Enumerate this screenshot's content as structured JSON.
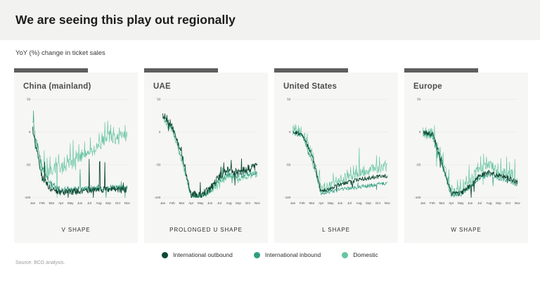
{
  "header": {
    "title": "We are seeing this play out regionally"
  },
  "subtitle": "YoY (%) change in ticket sales",
  "source": "Source: BCG analysis.",
  "colors": {
    "outbound": "#0d4a33",
    "inbound": "#2f9e80",
    "domestic": "#66c5a0",
    "accent_bar": "#5e5e5e",
    "panel_bg": "#f6f6f4",
    "header_band_bg": "#f2f2f0",
    "grid": "#e3e3e1"
  },
  "legend": {
    "items": [
      {
        "label": "International outbound",
        "color_key": "outbound"
      },
      {
        "label": "International inbound",
        "color_key": "inbound"
      },
      {
        "label": "Domestic",
        "color_key": "domestic"
      }
    ]
  },
  "y_ticks": [
    50,
    0,
    -50,
    -100
  ],
  "chart_data": [
    {
      "type": "line",
      "region": "China (mainland)",
      "shape_label": "V SHAPE",
      "ylim": [
        -100,
        50
      ],
      "seed": 11,
      "categories": [
        "Jan",
        "Feb",
        "Mar",
        "Apr",
        "May",
        "Jun",
        "Jul",
        "Aug",
        "Sep",
        "Oct",
        "Nov"
      ],
      "series": [
        {
          "name": "International outbound",
          "color_key": "outbound",
          "values": [
            5,
            -70,
            -88,
            -92,
            -91,
            -90,
            -89,
            -88,
            -88,
            -87,
            -88
          ],
          "noise": 5,
          "spike": 50,
          "comb": false
        },
        {
          "name": "International inbound",
          "color_key": "inbound",
          "values": [
            15,
            -55,
            -80,
            -88,
            -88,
            -87,
            -86,
            -85,
            -86,
            -85,
            -86
          ],
          "noise": 5,
          "spike": 35,
          "comb": false
        },
        {
          "name": "Domestic",
          "color_key": "domestic",
          "values": [
            10,
            -60,
            -58,
            -55,
            -48,
            -38,
            -32,
            -22,
            -5,
            -10,
            -6
          ],
          "noise": 10,
          "spike": 55,
          "comb": true
        }
      ]
    },
    {
      "type": "line",
      "region": "UAE",
      "shape_label": "PROLONGED U SHAPE",
      "ylim": [
        -100,
        50
      ],
      "seed": 23,
      "categories": [
        "Jan",
        "Feb",
        "Mar",
        "Apr",
        "May",
        "Jun",
        "Jul",
        "Aug",
        "Sep",
        "Oct",
        "Nov"
      ],
      "series": [
        {
          "name": "International outbound",
          "color_key": "outbound",
          "values": [
            28,
            10,
            -30,
            -96,
            -96,
            -88,
            -68,
            -58,
            -62,
            -56,
            -53
          ],
          "noise": 6,
          "spike": 28,
          "comb": false
        },
        {
          "name": "International inbound",
          "color_key": "inbound",
          "values": [
            24,
            6,
            -38,
            -98,
            -97,
            -91,
            -73,
            -64,
            -68,
            -64,
            -62
          ],
          "noise": 4,
          "spike": 14,
          "comb": false
        },
        {
          "name": "Domestic",
          "color_key": "domestic",
          "values": [
            21,
            3,
            -44,
            -98,
            -98,
            -93,
            -76,
            -67,
            -72,
            -68,
            -66
          ],
          "noise": 4,
          "spike": 12,
          "comb": false
        }
      ]
    },
    {
      "type": "line",
      "region": "United States",
      "shape_label": "L SHAPE",
      "ylim": [
        -100,
        50
      ],
      "seed": 37,
      "categories": [
        "Jan",
        "Feb",
        "Mar",
        "Apr",
        "May",
        "Jun",
        "Jul",
        "Aug",
        "Sep",
        "Oct",
        "Nov"
      ],
      "series": [
        {
          "name": "International outbound",
          "color_key": "outbound",
          "values": [
            0,
            -3,
            -35,
            -90,
            -87,
            -80,
            -76,
            -73,
            -70,
            -68,
            -67
          ],
          "noise": 3,
          "spike": 10,
          "comb": false
        },
        {
          "name": "International inbound",
          "color_key": "inbound",
          "values": [
            -2,
            -5,
            -42,
            -94,
            -91,
            -88,
            -86,
            -84,
            -82,
            -80,
            -79
          ],
          "noise": 3,
          "spike": 8,
          "comb": false
        },
        {
          "name": "Domestic",
          "color_key": "domestic",
          "values": [
            4,
            0,
            -30,
            -88,
            -84,
            -74,
            -68,
            -62,
            -58,
            -55,
            -54
          ],
          "noise": 8,
          "spike": 28,
          "comb": true
        }
      ]
    },
    {
      "type": "line",
      "region": "Europe",
      "shape_label": "W SHAPE",
      "ylim": [
        -100,
        50
      ],
      "seed": 53,
      "categories": [
        "Jan",
        "Feb",
        "Mar",
        "Apr",
        "May",
        "Jun",
        "Jul",
        "Aug",
        "Sep",
        "Oct",
        "Nov"
      ],
      "series": [
        {
          "name": "International outbound",
          "color_key": "outbound",
          "values": [
            0,
            -3,
            -45,
            -94,
            -94,
            -82,
            -66,
            -62,
            -66,
            -70,
            -77
          ],
          "noise": 4,
          "spike": 24,
          "comb": false
        },
        {
          "name": "International inbound",
          "color_key": "inbound",
          "values": [
            -3,
            -6,
            -50,
            -96,
            -95,
            -84,
            -70,
            -66,
            -70,
            -73,
            -80
          ],
          "noise": 4,
          "spike": 14,
          "comb": false
        },
        {
          "name": "Domestic",
          "color_key": "domestic",
          "values": [
            -4,
            -1,
            -40,
            -92,
            -90,
            -74,
            -56,
            -50,
            -60,
            -62,
            -70
          ],
          "noise": 8,
          "spike": 40,
          "comb": true
        }
      ]
    }
  ]
}
